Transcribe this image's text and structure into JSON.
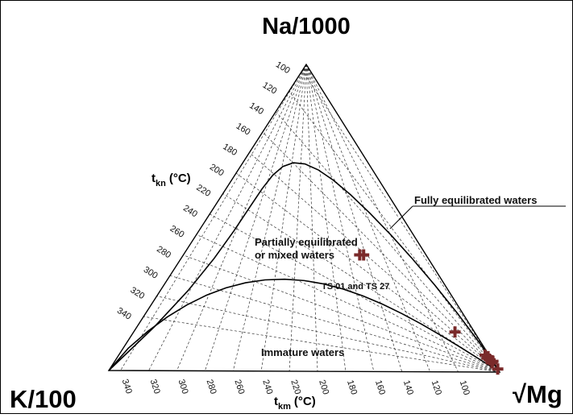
{
  "chart_data": {
    "type": "scatter",
    "diagram": "ternary",
    "vertices": {
      "top": "Na/1000",
      "left": "K/100",
      "right": "√Mg"
    },
    "axes": {
      "tkn": {
        "label": "t",
        "subscript": "kn",
        "unit": "(°C)",
        "ticks": [
          "100",
          "120",
          "140",
          "160",
          "180",
          "200",
          "220",
          "240",
          "260",
          "280",
          "300",
          "320",
          "340"
        ]
      },
      "tkm": {
        "label": "t",
        "subscript": "km",
        "unit": "(°C)",
        "ticks": [
          "340",
          "320",
          "300",
          "280",
          "260",
          "240",
          "220",
          "200",
          "180",
          "160",
          "140",
          "120",
          "100"
        ]
      }
    },
    "regions": {
      "full": "Fully equilibrated waters",
      "partial_line1": "Partially equilibrated",
      "partial_line2": "or mixed waters",
      "immature": "Immature waters"
    },
    "annotation": "TS 01 and TS 27",
    "marker_color": "#7a2a2a",
    "points": [
      {
        "na": 0.38,
        "k": 0.17,
        "mg": 0.45
      },
      {
        "na": 0.38,
        "k": 0.16,
        "mg": 0.46
      },
      {
        "na": 0.13,
        "k": 0.05,
        "mg": 0.82
      },
      {
        "na": 0.055,
        "k": 0.01,
        "mg": 0.935
      },
      {
        "na": 0.045,
        "k": 0.01,
        "mg": 0.945
      },
      {
        "na": 0.05,
        "k": 0.005,
        "mg": 0.945
      },
      {
        "na": 0.04,
        "k": 0.005,
        "mg": 0.955
      },
      {
        "na": 0.035,
        "k": 0.0,
        "mg": 0.965
      },
      {
        "na": 0.03,
        "k": 0.005,
        "mg": 0.965
      },
      {
        "na": 0.01,
        "k": 0.0,
        "mg": 0.99
      }
    ]
  }
}
